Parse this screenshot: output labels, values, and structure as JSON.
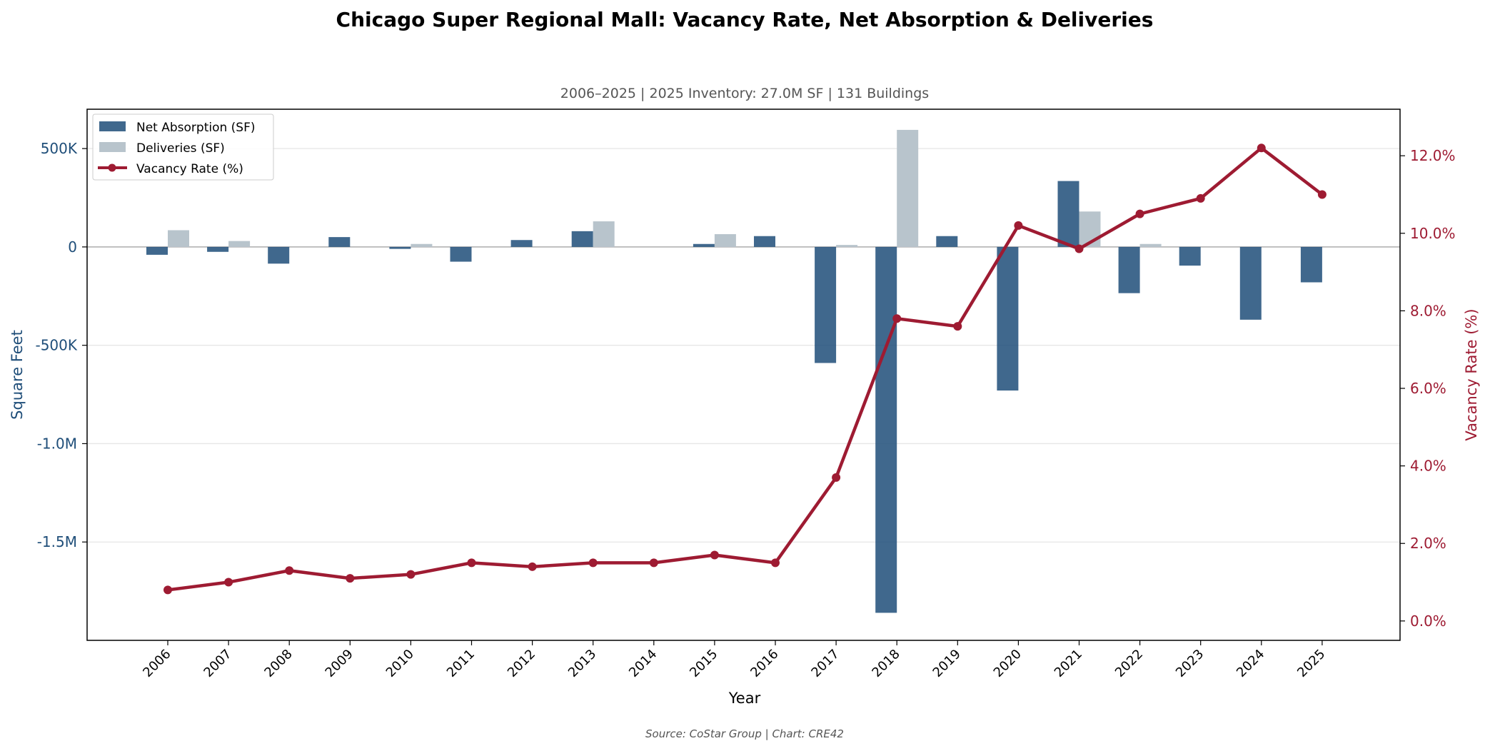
{
  "chart_data": {
    "type": "bar",
    "title": "Chicago Super Regional Mall: Vacancy Rate, Net Absorption & Deliveries",
    "subtitle": "2006–2025  |  2025 Inventory: 27.0M SF  |  131 Buildings",
    "xlabel": "Year",
    "ylabel_left": "Square Feet",
    "ylabel_right": "Vacancy Rate (%)",
    "categories": [
      "2006",
      "2007",
      "2008",
      "2009",
      "2010",
      "2011",
      "2012",
      "2013",
      "2014",
      "2015",
      "2016",
      "2017",
      "2018",
      "2019",
      "2020",
      "2021",
      "2022",
      "2023",
      "2024",
      "2025"
    ],
    "series": [
      {
        "name": "Net Absorption (SF)",
        "type": "bar",
        "axis": "left",
        "color": "#1f4e79",
        "values": [
          -40000,
          -25000,
          -85000,
          50000,
          -10000,
          -75000,
          35000,
          80000,
          0,
          15000,
          55000,
          -590000,
          -1860000,
          55000,
          -730000,
          335000,
          -235000,
          -95000,
          -370000,
          -180000
        ]
      },
      {
        "name": "Deliveries (SF)",
        "type": "bar",
        "axis": "left",
        "color": "#b8c4cc",
        "values": [
          85000,
          30000,
          0,
          0,
          15000,
          0,
          0,
          130000,
          0,
          65000,
          0,
          10000,
          595000,
          0,
          0,
          180000,
          15000,
          0,
          0,
          0
        ]
      },
      {
        "name": "Vacancy Rate (%)",
        "type": "line",
        "axis": "right",
        "color": "#9e1b32",
        "values": [
          0.8,
          1.0,
          1.3,
          1.1,
          1.2,
          1.5,
          1.4,
          1.5,
          1.5,
          1.7,
          1.5,
          3.7,
          7.8,
          7.6,
          10.2,
          9.6,
          10.5,
          10.9,
          12.2,
          11.0
        ]
      }
    ],
    "ylim_left": [
      -2000000,
      700000
    ],
    "yticks_left": [
      500000,
      0,
      -500000,
      -1000000,
      -1500000
    ],
    "yticklabels_left": [
      "500K",
      "0",
      "-500K",
      "-1.0M",
      "-1.5M"
    ],
    "ylim_right": [
      -0.5,
      13.2
    ],
    "yticks_right": [
      0,
      2,
      4,
      6,
      8,
      10,
      12
    ],
    "yticklabels_right": [
      "0.0%",
      "2.0%",
      "4.0%",
      "6.0%",
      "8.0%",
      "10.0%",
      "12.0%"
    ],
    "grid": true,
    "legend_position": "top-left",
    "source": "Source: CoStar Group  |  Chart: CRE42"
  }
}
